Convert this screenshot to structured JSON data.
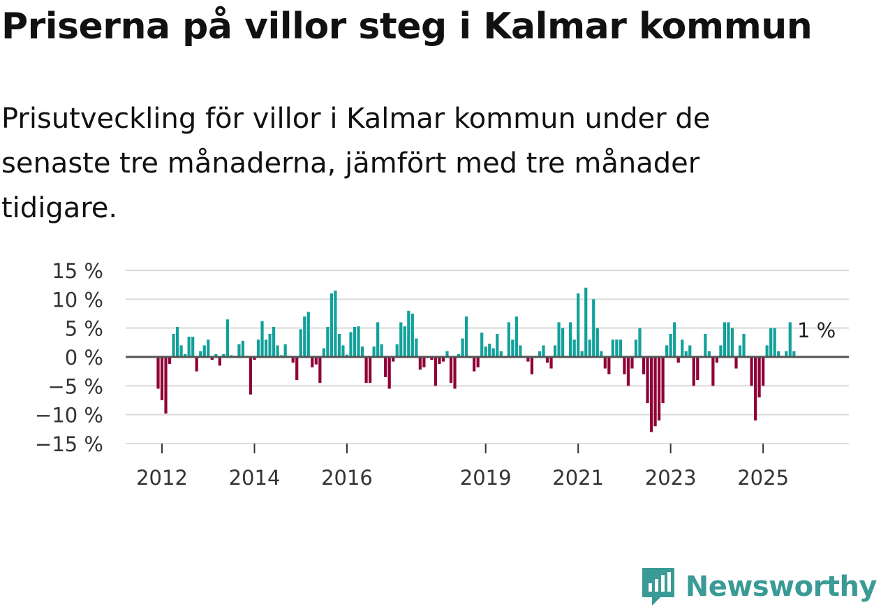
{
  "title": "Priserna på villor steg i Kalmar kommun",
  "subtitle": "Prisutveckling för villor i Kalmar kommun under de senaste tre månaderna, jämfört med tre månader tidigare.",
  "brand": "Newsworthy",
  "colors": {
    "positive": "#12a19a",
    "negative": "#8f0037",
    "grid": "#d9d9d9",
    "zero": "#555555",
    "brand": "#3a9a96"
  },
  "chart_data": {
    "type": "bar",
    "ylim": [
      -15,
      15
    ],
    "yticks": [
      15,
      10,
      5,
      0,
      -5,
      -10,
      -15
    ],
    "ytick_labels": [
      "15 %",
      "10 %",
      "5 %",
      "0 %",
      "−5 %",
      "−10 %",
      "−15 %"
    ],
    "x_tick_labels": [
      {
        "label": "2012",
        "year": 2012
      },
      {
        "label": "2014",
        "year": 2014
      },
      {
        "label": "2016",
        "year": 2016
      },
      {
        "label": "2019",
        "year": 2019
      },
      {
        "label": "2021",
        "year": 2021
      },
      {
        "label": "2023",
        "year": 2023
      },
      {
        "label": "2025",
        "year": 2025
      }
    ],
    "start": "2011-12",
    "frequency": "monthly",
    "values": [
      -5.5,
      -7.5,
      -9.8,
      -1.2,
      4,
      5.2,
      2,
      0.5,
      3.5,
      3.5,
      -2.5,
      1,
      2,
      3,
      -0.5,
      0.5,
      -1.5,
      0.5,
      6.5,
      0.3,
      0.2,
      2.2,
      2.8,
      0.2,
      -6.5,
      -0.5,
      3,
      6.2,
      3,
      4,
      5.2,
      2,
      0.3,
      2.2,
      0.2,
      -1,
      -4,
      4.8,
      7,
      7.8,
      -1.8,
      -1.3,
      -4.5,
      1.5,
      5.2,
      11,
      11.5,
      4,
      2,
      0.4,
      4.3,
      5.2,
      5.3,
      1.8,
      -4.5,
      -4.5,
      1.8,
      6,
      2.2,
      -3.5,
      -5.5,
      -0.8,
      2.2,
      6,
      5.3,
      8,
      7.5,
      3.2,
      -2.2,
      -1.8,
      -0.2,
      -0.5,
      -5,
      -1.2,
      -0.8,
      1,
      -4.5,
      -5.5,
      0.5,
      3.2,
      7,
      -0.2,
      -2.5,
      -1.8,
      4.2,
      1.8,
      2.3,
      1.5,
      4,
      1,
      -0.2,
      6,
      3,
      7,
      2,
      0.2,
      -0.8,
      -3,
      0.2,
      1,
      2,
      -1,
      -2,
      2,
      6,
      5,
      0.2,
      6,
      3,
      11,
      1,
      12,
      3,
      10,
      5,
      1,
      -2,
      -3,
      3,
      3,
      3,
      -3,
      -5,
      -2,
      3,
      5,
      -3,
      -8,
      -13,
      -12,
      -11,
      -8,
      2,
      4,
      6,
      -1,
      3,
      1,
      2,
      -5,
      -4,
      0.2,
      4,
      1,
      -5,
      -1,
      2,
      6,
      6,
      5,
      -2,
      2,
      4,
      0.2,
      -5,
      -11,
      -7,
      -5,
      2,
      5,
      5,
      1,
      0.2,
      1,
      6,
      1
    ],
    "annotation": "1 %",
    "title": "Priserna på villor steg i Kalmar kommun",
    "xlabel": "",
    "ylabel": ""
  }
}
